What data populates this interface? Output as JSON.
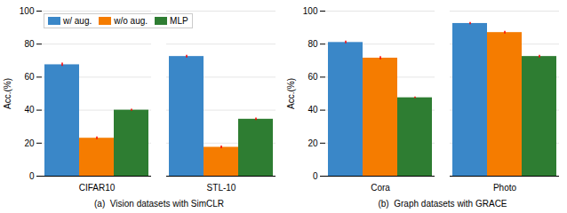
{
  "chart_data": [
    {
      "type": "bar",
      "categories": [
        "CIFAR10",
        "STL-10"
      ],
      "series": [
        {
          "name": "w/ aug.",
          "color": "#3a87c8",
          "values": [
            67.5,
            72.5
          ],
          "errors": [
            1.0,
            0.8
          ]
        },
        {
          "name": "w/o aug.",
          "color": "#f57c00",
          "values": [
            23.0,
            17.5
          ],
          "errors": [
            0.8,
            0.8
          ]
        },
        {
          "name": "MLP",
          "color": "#2e7d32",
          "values": [
            40.0,
            34.5
          ],
          "errors": [
            0.6,
            0.7
          ]
        }
      ],
      "ylabel": "Acc.(%)",
      "xlabel": "(a)  Vision datasets with SimCLR",
      "ylim": [
        0,
        100
      ],
      "yticks": [
        0,
        20,
        40,
        60,
        80,
        100
      ],
      "grid": true,
      "legend": "upper left"
    },
    {
      "type": "bar",
      "categories": [
        "Cora",
        "Photo"
      ],
      "series": [
        {
          "name": "w/ aug.",
          "color": "#3a87c8",
          "values": [
            81.0,
            92.5
          ],
          "errors": [
            0.8,
            0.7
          ]
        },
        {
          "name": "w/o aug.",
          "color": "#f57c00",
          "values": [
            71.5,
            87.0
          ],
          "errors": [
            1.0,
            0.8
          ]
        },
        {
          "name": "MLP",
          "color": "#2e7d32",
          "values": [
            47.5,
            72.5
          ],
          "errors": [
            0.5,
            0.8
          ]
        }
      ],
      "ylabel": "Acc.(%)",
      "xlabel": "(b)  Graph datasets with GRACE",
      "ylim": [
        0,
        100
      ],
      "yticks": [
        0,
        20,
        40,
        60,
        80,
        100
      ],
      "grid": true
    }
  ]
}
